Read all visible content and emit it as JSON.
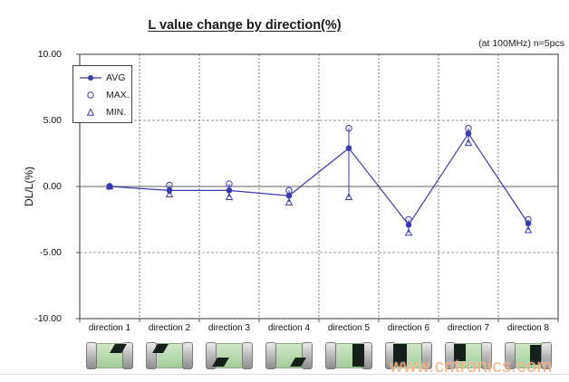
{
  "chart": {
    "title": "L value change by direction(%)",
    "annotation": "(at 100MHz)  n=5pcs",
    "ylabel": "DL/L(%)",
    "watermark": "www.cntronics.com"
  },
  "chart_data": {
    "type": "line",
    "categories": [
      "direction 1",
      "direction 2",
      "direction 3",
      "direction 4",
      "direction 5",
      "direction 6",
      "direction 7",
      "direction 8"
    ],
    "series": [
      {
        "name": "AVG",
        "marker": "filled-circle",
        "values": [
          0.0,
          -0.3,
          -0.3,
          -0.7,
          2.9,
          -2.9,
          4.0,
          -2.8
        ]
      },
      {
        "name": "MAX.",
        "marker": "open-circle",
        "values": [
          0.0,
          0.1,
          0.2,
          -0.3,
          4.4,
          -2.5,
          4.4,
          -2.5
        ]
      },
      {
        "name": "MIN.",
        "marker": "open-triangle",
        "values": [
          0.0,
          -0.6,
          -0.8,
          -1.2,
          -0.8,
          -3.5,
          3.3,
          -3.3
        ]
      }
    ],
    "ylim": [
      -10,
      10
    ],
    "yticks": [
      "10.00",
      "5.00",
      "0.00",
      "-5.00",
      "-10.00"
    ],
    "grid": "vertical dashed between categories; horizontal dashed at +5/-5; solid gray zero line",
    "legend_position": "top-left",
    "error_bars": "vertical blue line from MAX to MIN at each category",
    "colors": {
      "series_blue": "#3a3ab0",
      "grid_gray": "#888888",
      "zero_line_gray": "#7f7f7f",
      "axis_border": "#555555",
      "chip_body_green": "#b7d8ae",
      "chip_terminal_gray": "#bdbdbd",
      "chip_mark_black": "#15201a",
      "watermark_orange": "#f3a671"
    }
  },
  "chips": {
    "marks": [
      "top-right",
      "top-left",
      "bottom-left",
      "bottom-right",
      "right-full",
      "left-full",
      "left-upper",
      "right-center"
    ]
  }
}
